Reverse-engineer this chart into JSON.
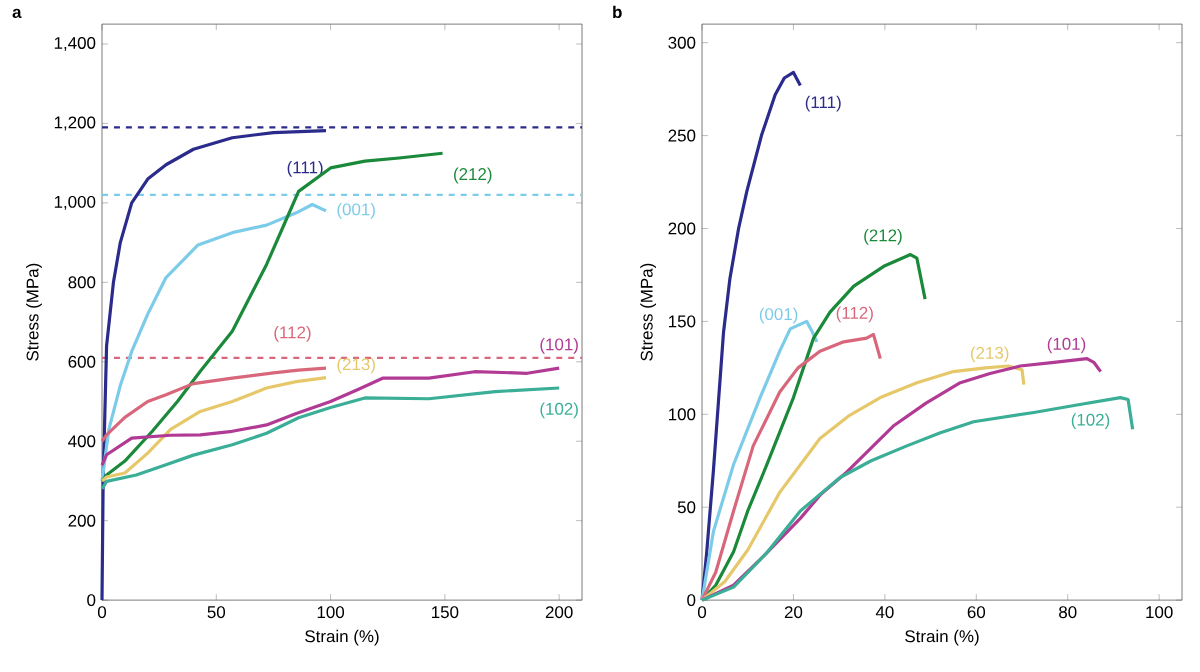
{
  "chart_data": [
    {
      "type": "line",
      "title": "a",
      "xlabel": "Strain (%)",
      "ylabel": "Stress (MPa)",
      "xlim": [
        0,
        210
      ],
      "ylim": [
        0,
        1450
      ],
      "xticks": [
        0,
        50,
        100,
        150,
        200
      ],
      "yticks": [
        0,
        200,
        400,
        600,
        800,
        {
          "value": 1000,
          "label": "1,000"
        },
        {
          "value": 1200,
          "label": "1,200"
        },
        {
          "value": 1400,
          "label": "1,400"
        }
      ],
      "ref_lines": [
        {
          "axis": "y",
          "value": 1190,
          "color": "#2b2b8c",
          "line_style": "dashed"
        },
        {
          "axis": "y",
          "value": 1020,
          "color": "#7ccbe8",
          "line_style": "dashed"
        },
        {
          "axis": "y",
          "value": 610,
          "color": "#d8677b",
          "line_style": "dashed"
        }
      ],
      "series": [
        {
          "name": "(111)",
          "color": "#2b2b8c",
          "x": [
            0,
            0.5,
            2,
            5,
            8,
            13,
            20,
            28,
            40,
            57,
            75,
            98
          ],
          "values": [
            0,
            300,
            640,
            800,
            900,
            1000,
            1060,
            1096,
            1135,
            1164,
            1177,
            1182
          ]
        },
        {
          "name": "(001)",
          "color": "#7ccbe8",
          "x": [
            0,
            3,
            8,
            13,
            20,
            28,
            42,
            57,
            72,
            85,
            92,
            98
          ],
          "values": [
            300,
            430,
            540,
            626,
            720,
            812,
            894,
            925,
            944,
            975,
            996,
            980
          ]
        },
        {
          "name": "(212)",
          "color": "#1a8a3a",
          "x": [
            0,
            2,
            10,
            22,
            33,
            43,
            57,
            72,
            80,
            86,
            100,
            115,
            130,
            149
          ],
          "values": [
            300,
            315,
            350,
            425,
            500,
            576,
            677,
            845,
            950,
            1029,
            1088,
            1105,
            1113,
            1125
          ]
        },
        {
          "name": "(112)",
          "color": "#d8677b",
          "x": [
            0,
            2,
            10,
            20,
            28,
            40,
            57,
            75,
            86,
            98
          ],
          "values": [
            400,
            416,
            460,
            500,
            517,
            545,
            559,
            572,
            579,
            584
          ]
        },
        {
          "name": "(213)",
          "color": "#e6c86a",
          "x": [
            0,
            2,
            10,
            20,
            30,
            43,
            57,
            72,
            85,
            98
          ],
          "values": [
            300,
            310,
            320,
            370,
            430,
            475,
            500,
            534,
            550,
            560
          ]
        },
        {
          "name": "(101)",
          "color": "#b13a95",
          "x": [
            0,
            2,
            13,
            30,
            43,
            57,
            72,
            85,
            100,
            112,
            123,
            143,
            163,
            186,
            200
          ],
          "values": [
            340,
            366,
            408,
            415,
            416,
            425,
            441,
            470,
            500,
            530,
            559,
            559,
            575,
            571,
            584
          ]
        },
        {
          "name": "(102)",
          "color": "#3aae96",
          "x": [
            0,
            2,
            15,
            28,
            40,
            57,
            72,
            86,
            100,
            115,
            143,
            172,
            200
          ],
          "values": [
            280,
            299,
            315,
            341,
            365,
            391,
            420,
            459,
            485,
            509,
            507,
            525,
            534
          ]
        }
      ]
    },
    {
      "type": "line",
      "title": "b",
      "xlabel": "Strain (%)",
      "ylabel": "Stress (MPa)",
      "xlim": [
        0,
        105
      ],
      "ylim": [
        0,
        310
      ],
      "xticks": [
        0,
        20,
        40,
        60,
        80,
        100
      ],
      "yticks": [
        0,
        50,
        100,
        150,
        200,
        250,
        300
      ],
      "series": [
        {
          "name": "(111)",
          "color": "#2b2b8c",
          "x": [
            0,
            1,
            2.5,
            4.7,
            6.1,
            8,
            9.8,
            13,
            16,
            18,
            20,
            21.5
          ],
          "values": [
            0,
            25,
            70,
            144,
            173,
            200,
            220,
            250,
            272,
            281,
            284,
            277
          ]
        },
        {
          "name": "(001)",
          "color": "#7ccbe8",
          "x": [
            0,
            2.5,
            6.9,
            12.7,
            17,
            19.3,
            22.9,
            24,
            25.1
          ],
          "values": [
            0,
            37,
            73,
            109,
            134,
            146,
            150,
            145,
            139
          ]
        },
        {
          "name": "(212)",
          "color": "#1a8a3a",
          "x": [
            0,
            3,
            6.9,
            10,
            14.2,
            20,
            24.4,
            28,
            33.2,
            40,
            45.6,
            47,
            48.8
          ],
          "values": [
            0,
            8,
            26,
            48,
            73,
            109,
            141,
            155,
            169,
            180,
            186,
            184,
            162
          ]
        },
        {
          "name": "(112)",
          "color": "#d8677b",
          "x": [
            0,
            3,
            6.9,
            11.2,
            17,
            21,
            25.8,
            31,
            36,
            37.5,
            39
          ],
          "values": [
            0,
            15,
            48,
            83,
            112,
            125,
            134,
            139,
            141,
            143,
            130
          ]
        },
        {
          "name": "(213)",
          "color": "#e6c86a",
          "x": [
            0,
            5,
            10,
            17,
            25.8,
            32,
            39,
            47,
            55,
            62,
            67,
            70,
            70.4
          ],
          "values": [
            0,
            10,
            27,
            58,
            87,
            99,
            109,
            117,
            123,
            125,
            126,
            124,
            116
          ]
        },
        {
          "name": "(101)",
          "color": "#b13a95",
          "x": [
            0,
            6.9,
            14,
            21.5,
            26,
            31.7,
            42,
            49,
            56.5,
            63,
            69.6,
            77,
            84.2,
            85.7,
            87.2
          ],
          "values": [
            0,
            8,
            25,
            44,
            57,
            69,
            94,
            106,
            117,
            122,
            126,
            128,
            130,
            128,
            123
          ]
        },
        {
          "name": "(102)",
          "color": "#3aae96",
          "x": [
            0,
            6.9,
            14,
            21.5,
            30.2,
            37,
            44.8,
            52,
            59.4,
            72.6,
            82,
            91.5,
            93.2,
            94.2
          ],
          "values": [
            0,
            7,
            25,
            48,
            66,
            75,
            83,
            90,
            96,
            101,
            105,
            109,
            108,
            92
          ]
        }
      ]
    }
  ]
}
